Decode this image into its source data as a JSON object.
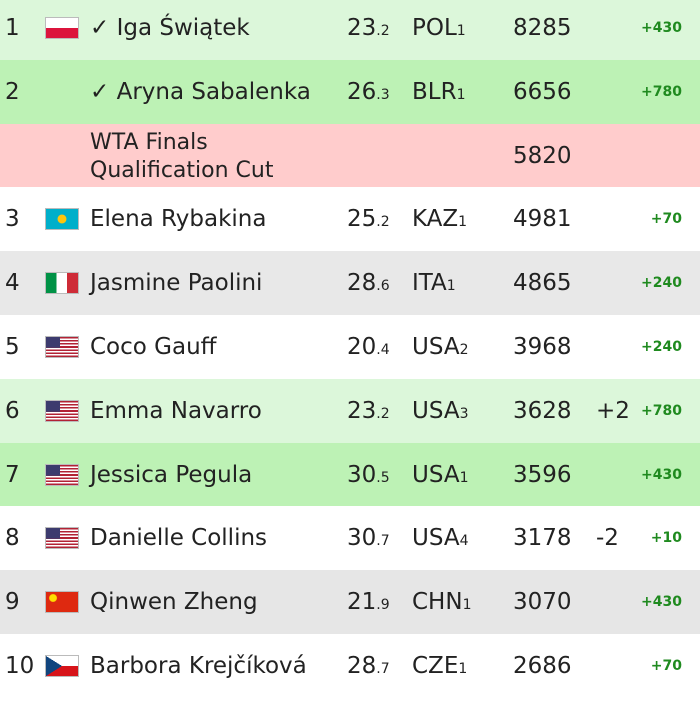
{
  "table": {
    "rows": [
      {
        "rank": 1,
        "name": "✓ Iga Świątek",
        "age": "23",
        "age_decimal": ".2",
        "country": "POL",
        "country_rank": "1",
        "points": 8285,
        "gain": "+430"
      },
      {
        "rank": 2,
        "name": "✓ Aryna Sabalenka",
        "age": "26",
        "age_decimal": ".3",
        "country": "BLR",
        "country_rank": "1",
        "points": 6656,
        "gain": "+780"
      },
      {
        "label_line1": "WTA Finals",
        "label_line2": "Qualification Cut",
        "points": 5820
      },
      {
        "rank": 3,
        "name": "Elena Rybakina",
        "age": "25",
        "age_decimal": ".2",
        "country": "KAZ",
        "country_rank": "1",
        "points": 4981,
        "gain": "+70"
      },
      {
        "rank": 4,
        "name": "Jasmine Paolini",
        "age": "28",
        "age_decimal": ".6",
        "country": "ITA",
        "country_rank": "1",
        "points": 4865,
        "gain": "+240"
      },
      {
        "rank": 5,
        "name": "Coco Gauff",
        "age": "20",
        "age_decimal": ".4",
        "country": "USA",
        "country_rank": "2",
        "points": 3968,
        "gain": "+240"
      },
      {
        "rank": 6,
        "name": "Emma Navarro",
        "age": "23",
        "age_decimal": ".2",
        "country": "USA",
        "country_rank": "3",
        "points": 3628,
        "move": "+2",
        "gain": "+780"
      },
      {
        "rank": 7,
        "name": "Jessica Pegula",
        "age": "30",
        "age_decimal": ".5",
        "country": "USA",
        "country_rank": "1",
        "points": 3596,
        "gain": "+430"
      },
      {
        "rank": 8,
        "name": "Danielle Collins",
        "age": "30",
        "age_decimal": ".7",
        "country": "USA",
        "country_rank": "4",
        "points": 3178,
        "move": "-2",
        "gain": "+10"
      },
      {
        "rank": 9,
        "name": "Qinwen Zheng",
        "age": "21",
        "age_decimal": ".9",
        "country": "CHN",
        "country_rank": "1",
        "points": 3070,
        "gain": "+430"
      },
      {
        "rank": 10,
        "name": "Barbora Krejčíková",
        "age": "28",
        "age_decimal": ".7",
        "country": "CZE",
        "country_rank": "1",
        "points": 2686,
        "gain": "+70"
      }
    ]
  }
}
